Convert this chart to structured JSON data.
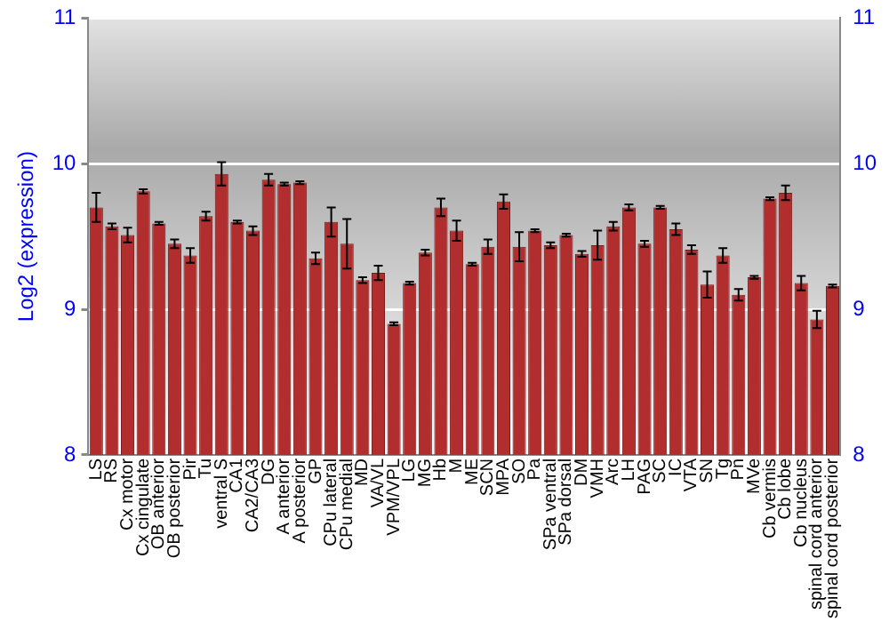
{
  "chart_data": {
    "type": "bar",
    "ylabel": "Log2 (expression)",
    "categories": [
      "LS",
      "RS",
      "Cx motor",
      "Cx cingulate",
      "OB anterior",
      "OB posterior",
      "Pir",
      "Tu",
      "ventral S",
      "CA1",
      "CA2/CA3",
      "DG",
      "A anterior",
      "A posterior",
      "GP",
      "CPu lateral",
      "CPu medial",
      "MD",
      "VA/VL",
      "VPM/VPL",
      "LG",
      "MG",
      "Hb",
      "M",
      "ME",
      "SCN",
      "MPA",
      "SO",
      "Pa",
      "SPa ventral",
      "SPa dorsal",
      "DM",
      "VMH",
      "Arc",
      "LH",
      "PAG",
      "SC",
      "IC",
      "VTA",
      "SN",
      "Tg",
      "Pn",
      "MVe",
      "Cb vermis",
      "Cb lobe",
      "Cb nucleus",
      "spinal cord anterior",
      "spinal cord posterior"
    ],
    "values": [
      9.7,
      9.57,
      9.51,
      9.81,
      9.59,
      9.45,
      9.37,
      9.64,
      9.93,
      9.6,
      9.54,
      9.89,
      9.86,
      9.87,
      9.35,
      9.6,
      9.45,
      9.2,
      9.25,
      8.9,
      9.18,
      9.39,
      9.7,
      9.54,
      9.31,
      9.43,
      9.74,
      9.43,
      9.54,
      9.44,
      9.51,
      9.38,
      9.44,
      9.57,
      9.7,
      9.45,
      9.7,
      9.55,
      9.41,
      9.17,
      9.37,
      9.1,
      9.22,
      9.76,
      9.8,
      9.18,
      8.93,
      9.16
    ],
    "errors": [
      0.1,
      0.02,
      0.05,
      0.015,
      0.01,
      0.03,
      0.05,
      0.03,
      0.08,
      0.01,
      0.03,
      0.04,
      0.01,
      0.01,
      0.04,
      0.1,
      0.17,
      0.02,
      0.05,
      0.01,
      0.01,
      0.02,
      0.06,
      0.07,
      0.01,
      0.05,
      0.05,
      0.1,
      0.01,
      0.02,
      0.01,
      0.02,
      0.1,
      0.03,
      0.02,
      0.02,
      0.01,
      0.04,
      0.03,
      0.09,
      0.05,
      0.04,
      0.01,
      0.01,
      0.05,
      0.05,
      0.06,
      0.01
    ],
    "color": "#b22d2d",
    "ylim": [
      8,
      11
    ],
    "yticks": [
      8,
      9,
      10,
      11
    ],
    "y2lim": [
      8,
      11
    ],
    "y2ticks": [
      8,
      9,
      10,
      11
    ],
    "grid": "y",
    "legend": false
  }
}
